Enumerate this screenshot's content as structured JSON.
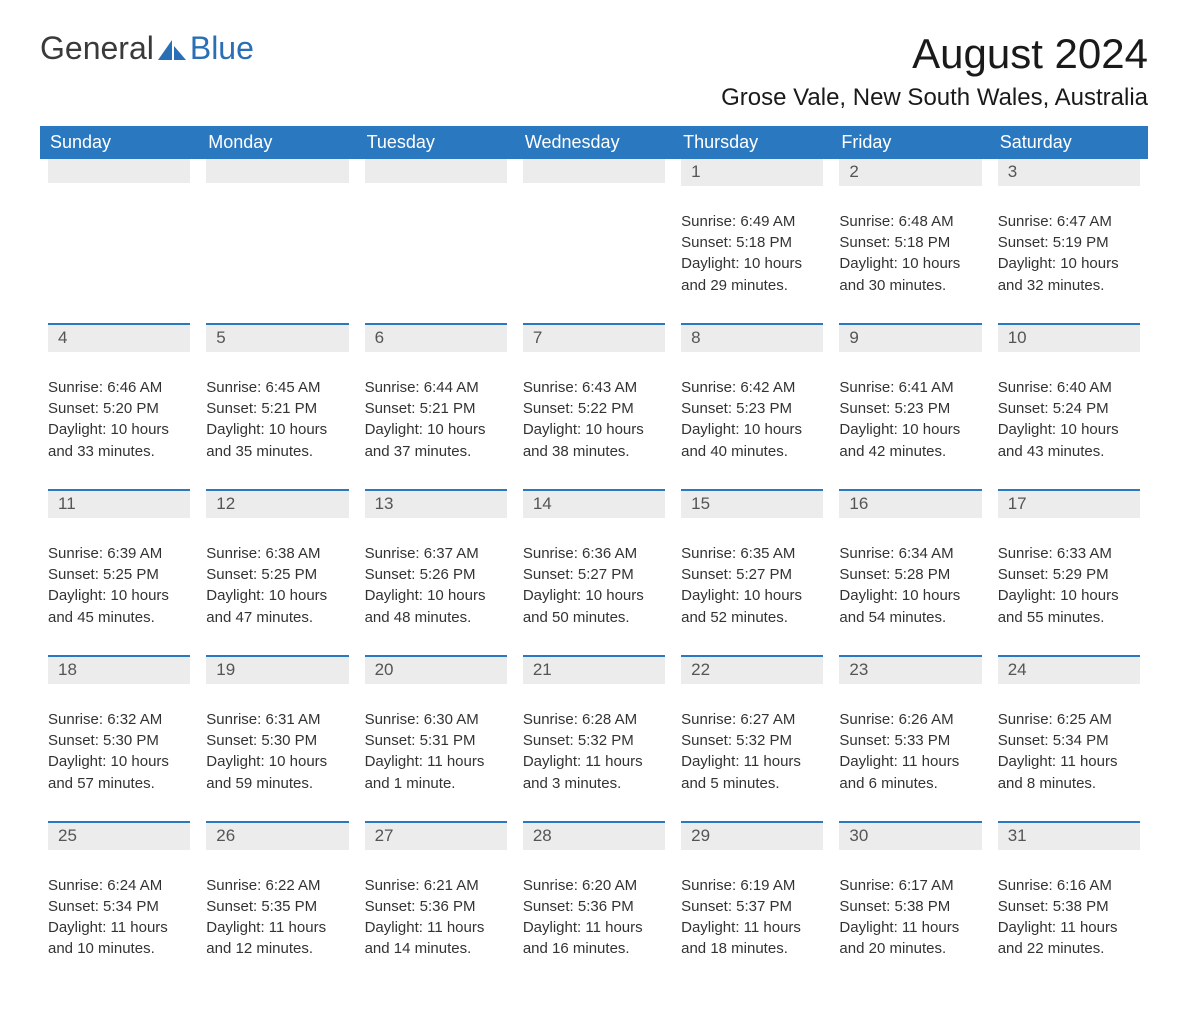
{
  "brand": {
    "part1": "General",
    "part2": "Blue"
  },
  "title": "August 2024",
  "location": "Grose Vale, New South Wales, Australia",
  "colors": {
    "header_bg": "#2a78c0",
    "header_text": "#ffffff",
    "daynum_bg": "#ececec",
    "daynum_border": "#2a78c0",
    "text": "#333333",
    "logo_blue": "#2a6fb5"
  },
  "weekdays": [
    "Sunday",
    "Monday",
    "Tuesday",
    "Wednesday",
    "Thursday",
    "Friday",
    "Saturday"
  ],
  "weeks": [
    [
      null,
      null,
      null,
      null,
      {
        "n": "1",
        "sr": "Sunrise: 6:49 AM",
        "ss": "Sunset: 5:18 PM",
        "d1": "Daylight: 10 hours",
        "d2": "and 29 minutes."
      },
      {
        "n": "2",
        "sr": "Sunrise: 6:48 AM",
        "ss": "Sunset: 5:18 PM",
        "d1": "Daylight: 10 hours",
        "d2": "and 30 minutes."
      },
      {
        "n": "3",
        "sr": "Sunrise: 6:47 AM",
        "ss": "Sunset: 5:19 PM",
        "d1": "Daylight: 10 hours",
        "d2": "and 32 minutes."
      }
    ],
    [
      {
        "n": "4",
        "sr": "Sunrise: 6:46 AM",
        "ss": "Sunset: 5:20 PM",
        "d1": "Daylight: 10 hours",
        "d2": "and 33 minutes."
      },
      {
        "n": "5",
        "sr": "Sunrise: 6:45 AM",
        "ss": "Sunset: 5:21 PM",
        "d1": "Daylight: 10 hours",
        "d2": "and 35 minutes."
      },
      {
        "n": "6",
        "sr": "Sunrise: 6:44 AM",
        "ss": "Sunset: 5:21 PM",
        "d1": "Daylight: 10 hours",
        "d2": "and 37 minutes."
      },
      {
        "n": "7",
        "sr": "Sunrise: 6:43 AM",
        "ss": "Sunset: 5:22 PM",
        "d1": "Daylight: 10 hours",
        "d2": "and 38 minutes."
      },
      {
        "n": "8",
        "sr": "Sunrise: 6:42 AM",
        "ss": "Sunset: 5:23 PM",
        "d1": "Daylight: 10 hours",
        "d2": "and 40 minutes."
      },
      {
        "n": "9",
        "sr": "Sunrise: 6:41 AM",
        "ss": "Sunset: 5:23 PM",
        "d1": "Daylight: 10 hours",
        "d2": "and 42 minutes."
      },
      {
        "n": "10",
        "sr": "Sunrise: 6:40 AM",
        "ss": "Sunset: 5:24 PM",
        "d1": "Daylight: 10 hours",
        "d2": "and 43 minutes."
      }
    ],
    [
      {
        "n": "11",
        "sr": "Sunrise: 6:39 AM",
        "ss": "Sunset: 5:25 PM",
        "d1": "Daylight: 10 hours",
        "d2": "and 45 minutes."
      },
      {
        "n": "12",
        "sr": "Sunrise: 6:38 AM",
        "ss": "Sunset: 5:25 PM",
        "d1": "Daylight: 10 hours",
        "d2": "and 47 minutes."
      },
      {
        "n": "13",
        "sr": "Sunrise: 6:37 AM",
        "ss": "Sunset: 5:26 PM",
        "d1": "Daylight: 10 hours",
        "d2": "and 48 minutes."
      },
      {
        "n": "14",
        "sr": "Sunrise: 6:36 AM",
        "ss": "Sunset: 5:27 PM",
        "d1": "Daylight: 10 hours",
        "d2": "and 50 minutes."
      },
      {
        "n": "15",
        "sr": "Sunrise: 6:35 AM",
        "ss": "Sunset: 5:27 PM",
        "d1": "Daylight: 10 hours",
        "d2": "and 52 minutes."
      },
      {
        "n": "16",
        "sr": "Sunrise: 6:34 AM",
        "ss": "Sunset: 5:28 PM",
        "d1": "Daylight: 10 hours",
        "d2": "and 54 minutes."
      },
      {
        "n": "17",
        "sr": "Sunrise: 6:33 AM",
        "ss": "Sunset: 5:29 PM",
        "d1": "Daylight: 10 hours",
        "d2": "and 55 minutes."
      }
    ],
    [
      {
        "n": "18",
        "sr": "Sunrise: 6:32 AM",
        "ss": "Sunset: 5:30 PM",
        "d1": "Daylight: 10 hours",
        "d2": "and 57 minutes."
      },
      {
        "n": "19",
        "sr": "Sunrise: 6:31 AM",
        "ss": "Sunset: 5:30 PM",
        "d1": "Daylight: 10 hours",
        "d2": "and 59 minutes."
      },
      {
        "n": "20",
        "sr": "Sunrise: 6:30 AM",
        "ss": "Sunset: 5:31 PM",
        "d1": "Daylight: 11 hours",
        "d2": "and 1 minute."
      },
      {
        "n": "21",
        "sr": "Sunrise: 6:28 AM",
        "ss": "Sunset: 5:32 PM",
        "d1": "Daylight: 11 hours",
        "d2": "and 3 minutes."
      },
      {
        "n": "22",
        "sr": "Sunrise: 6:27 AM",
        "ss": "Sunset: 5:32 PM",
        "d1": "Daylight: 11 hours",
        "d2": "and 5 minutes."
      },
      {
        "n": "23",
        "sr": "Sunrise: 6:26 AM",
        "ss": "Sunset: 5:33 PM",
        "d1": "Daylight: 11 hours",
        "d2": "and 6 minutes."
      },
      {
        "n": "24",
        "sr": "Sunrise: 6:25 AM",
        "ss": "Sunset: 5:34 PM",
        "d1": "Daylight: 11 hours",
        "d2": "and 8 minutes."
      }
    ],
    [
      {
        "n": "25",
        "sr": "Sunrise: 6:24 AM",
        "ss": "Sunset: 5:34 PM",
        "d1": "Daylight: 11 hours",
        "d2": "and 10 minutes."
      },
      {
        "n": "26",
        "sr": "Sunrise: 6:22 AM",
        "ss": "Sunset: 5:35 PM",
        "d1": "Daylight: 11 hours",
        "d2": "and 12 minutes."
      },
      {
        "n": "27",
        "sr": "Sunrise: 6:21 AM",
        "ss": "Sunset: 5:36 PM",
        "d1": "Daylight: 11 hours",
        "d2": "and 14 minutes."
      },
      {
        "n": "28",
        "sr": "Sunrise: 6:20 AM",
        "ss": "Sunset: 5:36 PM",
        "d1": "Daylight: 11 hours",
        "d2": "and 16 minutes."
      },
      {
        "n": "29",
        "sr": "Sunrise: 6:19 AM",
        "ss": "Sunset: 5:37 PM",
        "d1": "Daylight: 11 hours",
        "d2": "and 18 minutes."
      },
      {
        "n": "30",
        "sr": "Sunrise: 6:17 AM",
        "ss": "Sunset: 5:38 PM",
        "d1": "Daylight: 11 hours",
        "d2": "and 20 minutes."
      },
      {
        "n": "31",
        "sr": "Sunrise: 6:16 AM",
        "ss": "Sunset: 5:38 PM",
        "d1": "Daylight: 11 hours",
        "d2": "and 22 minutes."
      }
    ]
  ]
}
